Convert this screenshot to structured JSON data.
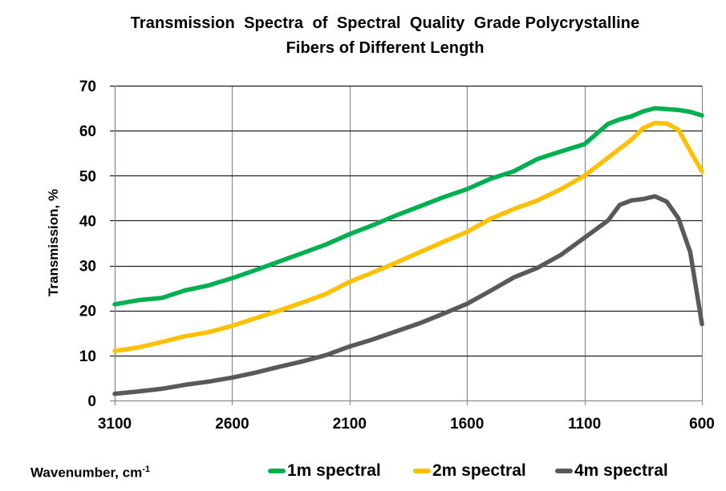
{
  "chart_data": {
    "type": "line",
    "title_lines": [
      "Transmission  Spectra  of  Spectral  Quality  Grade Polycrystalline",
      "Fibers of Different Length"
    ],
    "xlabel": "Wavenumber,  cm",
    "xlabel_superscript": "-1",
    "ylabel": "Transmission, %",
    "xlim": [
      3100,
      600
    ],
    "ylim": [
      0,
      70
    ],
    "x_reversed": true,
    "x_ticks": [
      3100,
      2600,
      2100,
      1600,
      1100,
      600
    ],
    "x_tick_labels": [
      "3100",
      "2600",
      "2100",
      "1600",
      "1100",
      "600"
    ],
    "y_ticks": [
      0,
      10,
      20,
      30,
      40,
      50,
      60,
      70
    ],
    "y_tick_labels": [
      "0",
      "10",
      "20",
      "30",
      "40",
      "50",
      "60",
      "70"
    ],
    "grid": {
      "horizontal": true,
      "vertical": true
    },
    "legend_position": "bottom",
    "x": [
      3100,
      3000,
      2900,
      2800,
      2700,
      2600,
      2500,
      2400,
      2300,
      2200,
      2100,
      2000,
      1900,
      1800,
      1700,
      1600,
      1500,
      1400,
      1300,
      1200,
      1100,
      1000,
      950,
      900,
      850,
      800,
      750,
      700,
      650,
      600
    ],
    "series": [
      {
        "name": "1m spectral",
        "color": "#00B050",
        "values": [
          21.4,
          22.3,
          22.8,
          24.5,
          25.6,
          27.2,
          29.0,
          30.9,
          32.8,
          34.7,
          37.0,
          39.0,
          41.2,
          43.2,
          45.2,
          47.0,
          49.3,
          51.0,
          53.7,
          55.4,
          57.0,
          61.5,
          62.5,
          63.2,
          64.3,
          65.0,
          64.8,
          64.6,
          64.2,
          63.4
        ]
      },
      {
        "name": "2m spectral",
        "color": "#FFC000",
        "values": [
          11.0,
          11.8,
          13.0,
          14.3,
          15.2,
          16.6,
          18.3,
          20.0,
          21.8,
          23.7,
          26.4,
          28.5,
          30.7,
          33.0,
          35.3,
          37.5,
          40.4,
          42.6,
          44.5,
          47.0,
          50.0,
          54.0,
          56.0,
          58.0,
          60.6,
          61.7,
          61.6,
          60.2,
          55.5,
          51.0
        ]
      },
      {
        "name": "4m spectral",
        "color": "#595959",
        "values": [
          1.5,
          2.0,
          2.6,
          3.5,
          4.2,
          5.1,
          6.2,
          7.5,
          8.7,
          10.1,
          12.0,
          13.6,
          15.4,
          17.2,
          19.3,
          21.5,
          24.4,
          27.4,
          29.5,
          32.4,
          36.2,
          40.0,
          43.5,
          44.5,
          44.8,
          45.4,
          44.2,
          40.5,
          33.0,
          17.0
        ]
      }
    ]
  },
  "colors": {
    "h_grid": "#1f1f1f",
    "v_grid": "#8c8c8c",
    "background": "#ffffff"
  }
}
